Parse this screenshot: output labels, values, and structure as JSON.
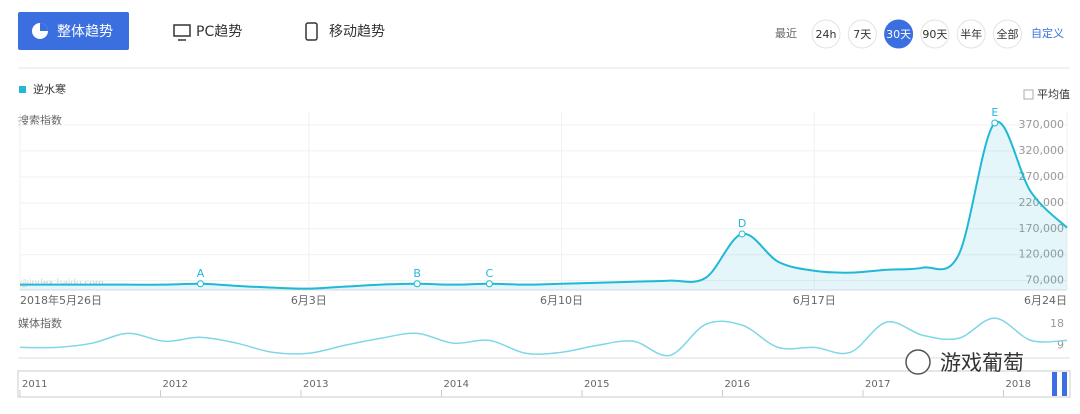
{
  "tabs": [
    "整体趋势",
    "PC趋势",
    "移动趋势"
  ],
  "range_label": "最近",
  "ranges": [
    "24h",
    "7天",
    "30天",
    "90天",
    "半年",
    "全部"
  ],
  "active_range": "30天",
  "custom": "自定义",
  "average_toggle": "平均值",
  "watermark": "@index.baidu.com",
  "brand": "游戏葡萄",
  "timeline": {
    "years": [
      "2011",
      "2012",
      "2013",
      "2014",
      "2015",
      "2016",
      "2017",
      "2018"
    ]
  },
  "chart_data": [
    {
      "type": "line",
      "y_label": "搜索指数",
      "categories": [
        "2018年5月26日",
        null,
        null,
        null,
        null,
        null,
        null,
        null,
        "6月3日",
        null,
        null,
        null,
        null,
        null,
        null,
        "6月10日",
        null,
        null,
        null,
        null,
        null,
        null,
        "6月17日",
        null,
        null,
        null,
        null,
        null,
        null,
        "6月24日"
      ],
      "series": [
        {
          "name": "逆水寒",
          "color": "#1fb8d6",
          "values": [
            62300,
            62300,
            62300,
            62300,
            62300,
            64000,
            60000,
            56500,
            54600,
            58500,
            62300,
            64000,
            62300,
            64000,
            62300,
            64000,
            66000,
            68000,
            70000,
            75800,
            160000,
            106500,
            89000,
            85400,
            91000,
            95000,
            120000,
            373800,
            241000,
            172000
          ],
          "point_labels": [
            null,
            null,
            null,
            null,
            null,
            "A",
            null,
            null,
            null,
            null,
            null,
            "B",
            null,
            "C",
            null,
            null,
            null,
            null,
            null,
            null,
            "D",
            null,
            null,
            null,
            null,
            null,
            null,
            "E",
            null,
            null
          ]
        }
      ],
      "ylim": [
        52000,
        395000
      ],
      "yticks": [
        {
          "value": 70000,
          "label": "70,000"
        },
        {
          "value": 120000,
          "label": "120,000"
        },
        {
          "value": 170000,
          "label": "170,000"
        },
        {
          "value": 220000,
          "label": "220,000"
        },
        {
          "value": 270000,
          "label": "270,000"
        },
        {
          "value": 320000,
          "label": "320,000"
        },
        {
          "value": 370000,
          "label": "370,000"
        }
      ],
      "grid": true
    },
    {
      "type": "line",
      "y_label": "媒体指数",
      "series": [
        {
          "name": "逆水寒",
          "color": "#7fd6e8",
          "values": [
            8.1,
            8.1,
            9.9,
            14.1,
            10.7,
            12.4,
            9.9,
            6.0,
            5.6,
            9,
            12,
            14.1,
            9.9,
            11.1,
            5.6,
            6.0,
            9,
            10.7,
            4.7,
            18,
            17.6,
            8.1,
            8.1,
            6.0,
            18.9,
            13.3,
            12,
            20.6,
            11.1,
            11.1
          ]
        }
      ],
      "ylim": [
        4,
        21.5
      ],
      "yticks": [
        9,
        18
      ]
    }
  ]
}
